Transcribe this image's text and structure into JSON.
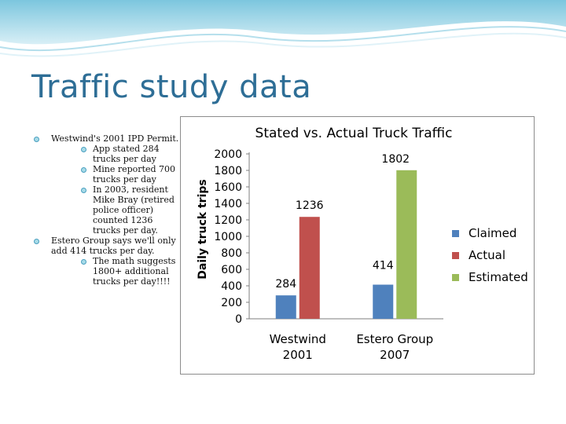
{
  "slide": {
    "title": "Traffic study data",
    "accent_color": "#2e6e96",
    "bullets": [
      {
        "text": "Westwind's 2001 IPD Permit.",
        "children": [
          "App stated 284 trucks per day",
          "Mine reported 700 trucks per day",
          "In 2003, resident Mike Bray (retired police officer) counted 1236 trucks per day."
        ]
      },
      {
        "text": "Estero Group says we'll only add 414 trucks per day.",
        "children": [
          "The math suggests 1800+ additional trucks per day!!!!"
        ]
      }
    ]
  },
  "chart_data": {
    "type": "bar",
    "title": "Stated vs. Actual Truck Traffic",
    "ylabel": "Daily truck trips",
    "xlabel": "",
    "ylim": [
      0,
      2000
    ],
    "yticks": [
      "0",
      "200",
      "400",
      "600",
      "800",
      "1000",
      "1200",
      "1400",
      "1600",
      "1800",
      "2000"
    ],
    "categories": [
      {
        "lines": [
          "Westwind",
          "2001"
        ]
      },
      {
        "lines": [
          "Estero Group",
          "2007"
        ]
      }
    ],
    "series": [
      {
        "name": "Claimed",
        "color": "#4f81bd",
        "values": [
          284,
          414
        ]
      },
      {
        "name": "Actual",
        "color": "#c0504d",
        "values": [
          1236,
          null
        ]
      },
      {
        "name": "Estimated",
        "color": "#9bbb59",
        "values": [
          null,
          1802
        ]
      }
    ],
    "data_labels": [
      {
        "series": 0,
        "category": 0,
        "text": "284"
      },
      {
        "series": 1,
        "category": 0,
        "text": "1236"
      },
      {
        "series": 0,
        "category": 1,
        "text": "414"
      },
      {
        "series": 2,
        "category": 1,
        "text": "1802"
      }
    ],
    "grid": false,
    "legend_position": "right"
  }
}
